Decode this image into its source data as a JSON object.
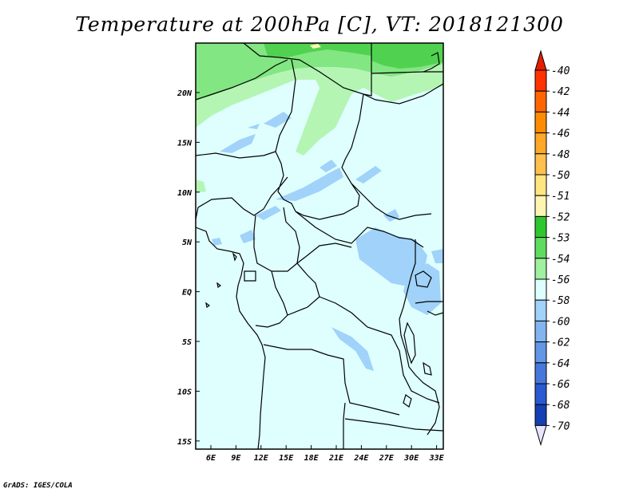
{
  "title": "Temperature at 200hPa [C], VT: 2018121300",
  "credit": "GrADS: IGES/COLA",
  "lon_ticks": [
    "6E",
    "9E",
    "12E",
    "15E",
    "18E",
    "21E",
    "24E",
    "27E",
    "30E",
    "33E"
  ],
  "lat_ticks": [
    "20N",
    "15N",
    "10N",
    "5N",
    "EQ",
    "5S",
    "10S",
    "15S"
  ],
  "legend": {
    "levels": [
      "-40",
      "-42",
      "-44",
      "-46",
      "-48",
      "-50",
      "-51",
      "-52",
      "-53",
      "-54",
      "-56",
      "-58",
      "-60",
      "-62",
      "-64",
      "-66",
      "-68",
      "-70"
    ],
    "colors": [
      "#ff3300",
      "#ff6600",
      "#ff8c00",
      "#ffa726",
      "#ffc04d",
      "#ffe680",
      "#fff5b3",
      "#2ec82e",
      "#5fdc5f",
      "#9ff09f",
      "#dfffff",
      "#a0d2fa",
      "#82b4f0",
      "#6496e6",
      "#4678dc",
      "#2a5ad2",
      "#1440b4",
      "#0a1e8c"
    ],
    "top_arrow_color": "#e61e00",
    "bottom_arrow_color": "#e6e6ff"
  },
  "colors": {
    "ocean_fill": "#dfffff",
    "light_green": "#b4f5b4",
    "mid_green": "#82e682",
    "bright_green": "#50d250",
    "light_blue": "#a0d2fa"
  }
}
